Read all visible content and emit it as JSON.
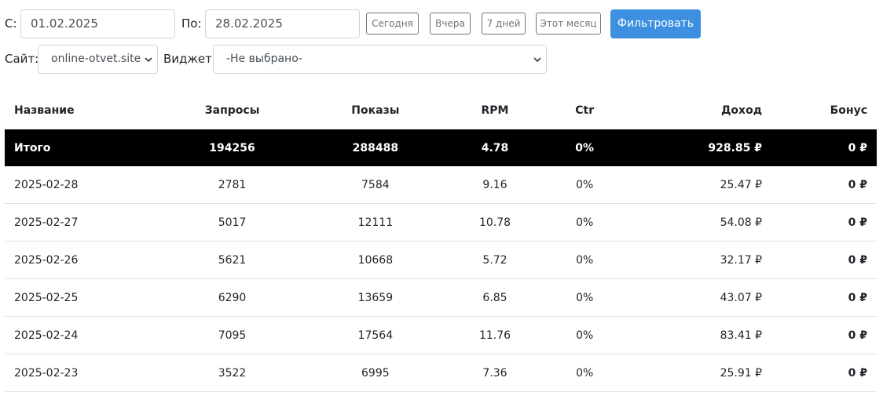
{
  "filters": {
    "from_label": "С:",
    "from_value": "01.02.2025",
    "to_label": "По:",
    "to_value": "28.02.2025",
    "quick": [
      "Сегодня",
      "Вчера",
      "7 дней",
      "Этот месяц"
    ],
    "filter_button": "Фильтровать",
    "site_label": "Сайт:",
    "site_value": "online-otvet.site",
    "widget_label": "Виджет:",
    "widget_value": "-Не выбрано-"
  },
  "table": {
    "headers": [
      "Название",
      "Запросы",
      "Показы",
      "RPM",
      "Ctr",
      "Доход",
      "Бонус"
    ],
    "total": [
      "Итого",
      "194256",
      "288488",
      "4.78",
      "0%",
      "928.85 ₽",
      "0 ₽"
    ],
    "rows": [
      [
        "2025-02-28",
        "2781",
        "7584",
        "9.16",
        "0%",
        "25.47 ₽",
        "0 ₽"
      ],
      [
        "2025-02-27",
        "5017",
        "12111",
        "10.78",
        "0%",
        "54.08 ₽",
        "0 ₽"
      ],
      [
        "2025-02-26",
        "5621",
        "10668",
        "5.72",
        "0%",
        "32.17 ₽",
        "0 ₽"
      ],
      [
        "2025-02-25",
        "6290",
        "13659",
        "6.85",
        "0%",
        "43.07 ₽",
        "0 ₽"
      ],
      [
        "2025-02-24",
        "7095",
        "17564",
        "11.76",
        "0%",
        "83.41 ₽",
        "0 ₽"
      ],
      [
        "2025-02-23",
        "3522",
        "6995",
        "7.36",
        "0%",
        "25.91 ₽",
        "0 ₽"
      ]
    ]
  },
  "colors": {
    "primary": "#3d8fe0",
    "total_bg": "#000000",
    "border": "#dee2e6"
  },
  "icons": {
    "select_arrow": "chevron-down-icon"
  }
}
